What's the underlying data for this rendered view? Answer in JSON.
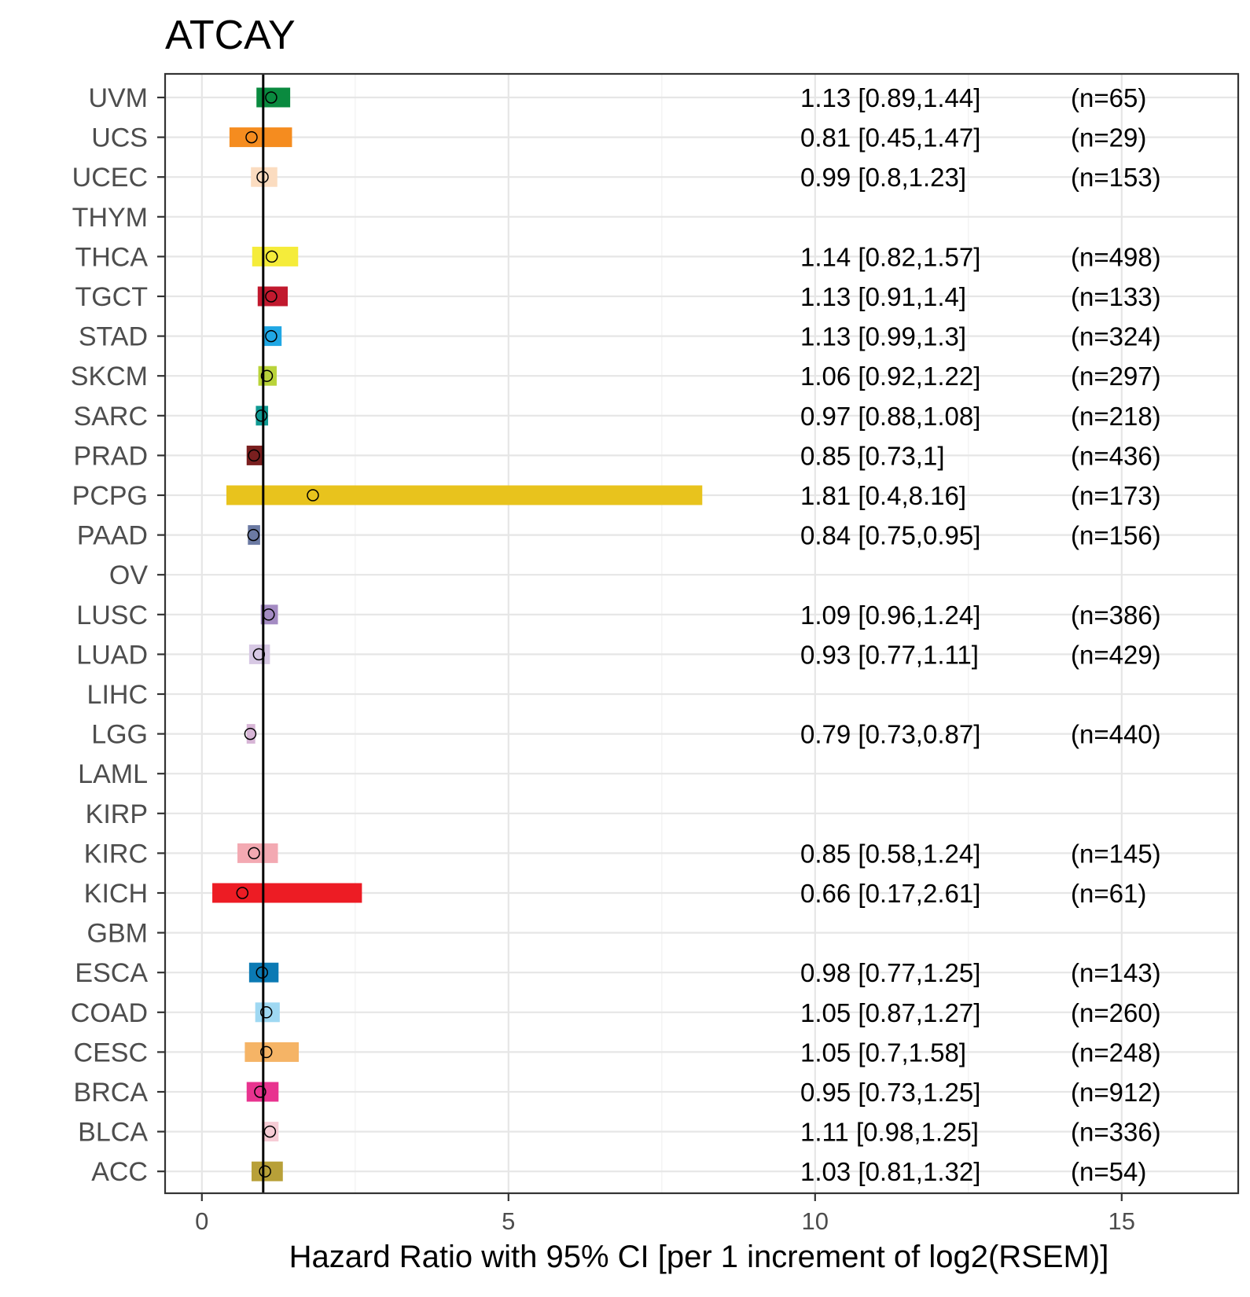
{
  "chart_data": {
    "type": "forest",
    "title": "ATCAY",
    "xlabel": "Hazard Ratio with 95% CI [per 1 increment of log2(RSEM)]",
    "ylabel": "",
    "xlim": [
      -0.6,
      16.9
    ],
    "xticks": [
      0,
      5,
      10,
      15
    ],
    "reference_line": 1,
    "grid": true,
    "rows": [
      {
        "label": "UVM",
        "hr": 1.13,
        "lo": 0.89,
        "hi": 1.44,
        "text": "1.13 [0.89,1.44]",
        "n": "(n=65)",
        "color": "#0a8a3f"
      },
      {
        "label": "UCS",
        "hr": 0.81,
        "lo": 0.45,
        "hi": 1.47,
        "text": "0.81 [0.45,1.47]",
        "n": "(n=29)",
        "color": "#f58c1f"
      },
      {
        "label": "UCEC",
        "hr": 0.99,
        "lo": 0.8,
        "hi": 1.23,
        "text": "0.99 [0.8,1.23]",
        "n": "(n=153)",
        "color": "#fbdcc0"
      },
      {
        "label": "THYM",
        "hr": null,
        "lo": null,
        "hi": null,
        "text": "",
        "n": "",
        "color": "#cccccc"
      },
      {
        "label": "THCA",
        "hr": 1.14,
        "lo": 0.82,
        "hi": 1.57,
        "text": "1.14 [0.82,1.57]",
        "n": "(n=498)",
        "color": "#f5ec3a"
      },
      {
        "label": "TGCT",
        "hr": 1.13,
        "lo": 0.91,
        "hi": 1.4,
        "text": "1.13 [0.91,1.4]",
        "n": "(n=133)",
        "color": "#c1192e"
      },
      {
        "label": "STAD",
        "hr": 1.13,
        "lo": 0.99,
        "hi": 1.3,
        "text": "1.13 [0.99,1.3]",
        "n": "(n=324)",
        "color": "#20a7e4"
      },
      {
        "label": "SKCM",
        "hr": 1.06,
        "lo": 0.92,
        "hi": 1.22,
        "text": "1.06 [0.92,1.22]",
        "n": "(n=297)",
        "color": "#b9d33a"
      },
      {
        "label": "SARC",
        "hr": 0.97,
        "lo": 0.88,
        "hi": 1.08,
        "text": "0.97 [0.88,1.08]",
        "n": "(n=218)",
        "color": "#109a93"
      },
      {
        "label": "PRAD",
        "hr": 0.85,
        "lo": 0.73,
        "hi": 1,
        "text": "0.85 [0.73,1]",
        "n": "(n=436)",
        "color": "#7a1f1f"
      },
      {
        "label": "PCPG",
        "hr": 1.81,
        "lo": 0.4,
        "hi": 8.16,
        "text": "1.81 [0.4,8.16]",
        "n": "(n=173)",
        "color": "#e8c31d"
      },
      {
        "label": "PAAD",
        "hr": 0.84,
        "lo": 0.75,
        "hi": 0.95,
        "text": "0.84 [0.75,0.95]",
        "n": "(n=156)",
        "color": "#6b7aa3"
      },
      {
        "label": "OV",
        "hr": null,
        "lo": null,
        "hi": null,
        "text": "",
        "n": "",
        "color": "#cccccc"
      },
      {
        "label": "LUSC",
        "hr": 1.09,
        "lo": 0.96,
        "hi": 1.24,
        "text": "1.09 [0.96,1.24]",
        "n": "(n=386)",
        "color": "#a48bc3"
      },
      {
        "label": "LUAD",
        "hr": 0.93,
        "lo": 0.77,
        "hi": 1.11,
        "text": "0.93 [0.77,1.11]",
        "n": "(n=429)",
        "color": "#d7c8e4"
      },
      {
        "label": "LIHC",
        "hr": null,
        "lo": null,
        "hi": null,
        "text": "",
        "n": "",
        "color": "#cccccc"
      },
      {
        "label": "LGG",
        "hr": 0.79,
        "lo": 0.73,
        "hi": 0.87,
        "text": "0.79 [0.73,0.87]",
        "n": "(n=440)",
        "color": "#d7b5d6"
      },
      {
        "label": "LAML",
        "hr": null,
        "lo": null,
        "hi": null,
        "text": "",
        "n": "",
        "color": "#cccccc"
      },
      {
        "label": "KIRP",
        "hr": null,
        "lo": null,
        "hi": null,
        "text": "",
        "n": "",
        "color": "#cccccc"
      },
      {
        "label": "KIRC",
        "hr": 0.85,
        "lo": 0.58,
        "hi": 1.24,
        "text": "0.85 [0.58,1.24]",
        "n": "(n=145)",
        "color": "#f3a9b2"
      },
      {
        "label": "KICH",
        "hr": 0.66,
        "lo": 0.17,
        "hi": 2.61,
        "text": "0.66 [0.17,2.61]",
        "n": "(n=61)",
        "color": "#ed1c24"
      },
      {
        "label": "GBM",
        "hr": null,
        "lo": null,
        "hi": null,
        "text": "",
        "n": "",
        "color": "#cccccc"
      },
      {
        "label": "ESCA",
        "hr": 0.98,
        "lo": 0.77,
        "hi": 1.25,
        "text": "0.98 [0.77,1.25]",
        "n": "(n=143)",
        "color": "#0b7ab4"
      },
      {
        "label": "COAD",
        "hr": 1.05,
        "lo": 0.87,
        "hi": 1.27,
        "text": "1.05 [0.87,1.27]",
        "n": "(n=260)",
        "color": "#9fd8f2"
      },
      {
        "label": "CESC",
        "hr": 1.05,
        "lo": 0.7,
        "hi": 1.58,
        "text": "1.05 [0.7,1.58]",
        "n": "(n=248)",
        "color": "#f5b466"
      },
      {
        "label": "BRCA",
        "hr": 0.95,
        "lo": 0.73,
        "hi": 1.25,
        "text": "0.95 [0.73,1.25]",
        "n": "(n=912)",
        "color": "#e8338f"
      },
      {
        "label": "BLCA",
        "hr": 1.11,
        "lo": 0.98,
        "hi": 1.25,
        "text": "1.11 [0.98,1.25]",
        "n": "(n=336)",
        "color": "#f6ccd5"
      },
      {
        "label": "ACC",
        "hr": 1.03,
        "lo": 0.81,
        "hi": 1.32,
        "text": "1.03 [0.81,1.32]",
        "n": "(n=54)",
        "color": "#b8a038"
      }
    ]
  }
}
